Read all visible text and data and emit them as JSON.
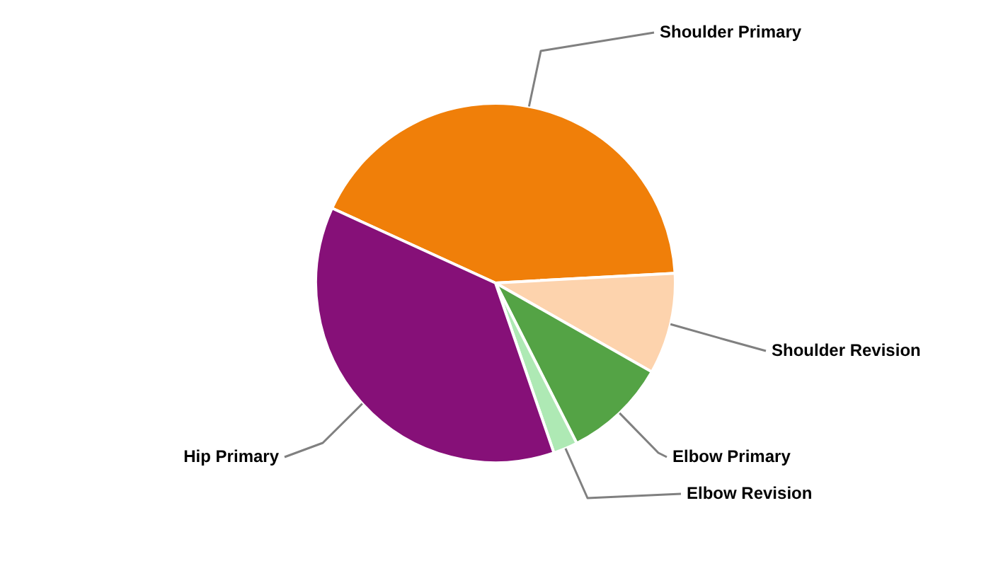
{
  "chart_data": {
    "type": "pie",
    "categories": [
      "Shoulder Primary",
      "Shoulder Revision",
      "Elbow Primary",
      "Elbow Revision",
      "Hip Primary"
    ],
    "values": [
      42.3,
      9.1,
      9.3,
      2.2,
      37.1
    ],
    "colors": [
      "#f07f09",
      "#fdd3ad",
      "#54a345",
      "#aee9b4",
      "#861078"
    ]
  }
}
